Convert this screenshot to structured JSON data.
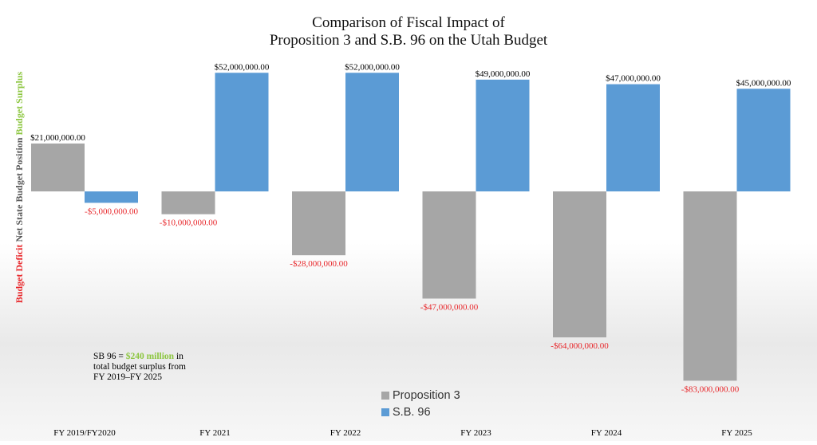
{
  "chart_data": {
    "type": "bar",
    "title_line1": "Comparison of Fiscal Impact of",
    "title_line2": "Proposition 3 and S.B. 96 on the Utah Budget",
    "ylabel_parts": {
      "deficit": "Budget Deficit",
      "net": "Net State Budget Position",
      "surplus": "Budget Surplus"
    },
    "categories": [
      "FY 2019/FY2020",
      "FY 2021",
      "FY 2022",
      "FY 2023",
      "FY 2024",
      "FY 2025"
    ],
    "series": [
      {
        "name": "Proposition 3",
        "color": "#a6a6a6",
        "values": [
          21000000,
          -10000000,
          -28000000,
          -47000000,
          -64000000,
          -83000000
        ],
        "labels": [
          "$21,000,000.00",
          "-$10,000,000.00",
          "-$28,000,000.00",
          "-$47,000,000.00",
          "-$64,000,000.00",
          "-$83,000,000.00"
        ]
      },
      {
        "name": "S.B. 96",
        "color": "#5b9bd5",
        "values": [
          -5000000,
          52000000,
          52000000,
          49000000,
          47000000,
          45000000
        ],
        "labels": [
          "-$5,000,000.00",
          "$52,000,000.00",
          "$52,000,000.00",
          "$49,000,000.00",
          "$47,000,000.00",
          "$45,000,000.00"
        ]
      }
    ],
    "ylim": [
      -83000000,
      52000000
    ],
    "grid": false,
    "legend_position": "bottom-center",
    "colors": {
      "positive_label": "#000000",
      "negative_label": "#e8262a",
      "surplus": "#8cc63f",
      "deficit": "#e8262a",
      "net": "#595959"
    }
  },
  "note": {
    "prefix": "SB 96 = ",
    "highlight": "$240 million",
    "suffix_line1": " in",
    "line2": "total budget surplus from",
    "line3": "FY 2019–FY 2025"
  }
}
